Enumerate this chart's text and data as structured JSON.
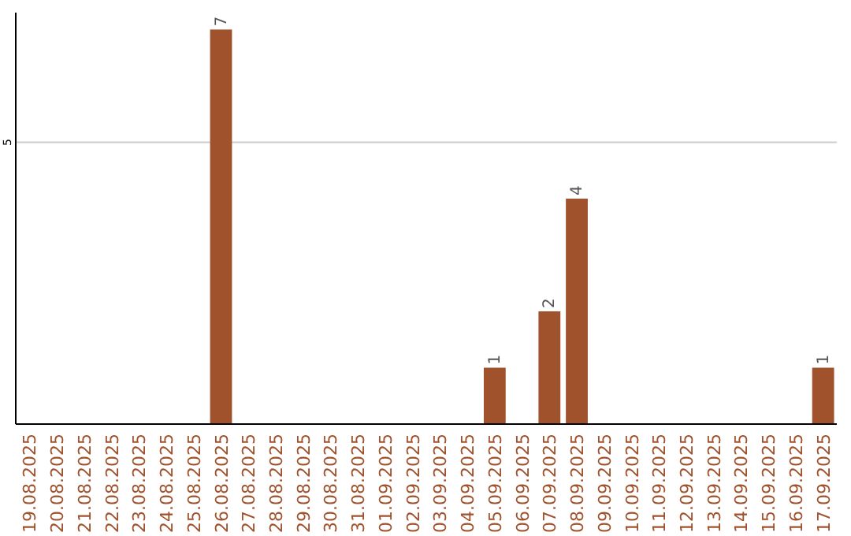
{
  "chart_data": {
    "type": "bar",
    "categories": [
      "19.08.2025",
      "20.08.2025",
      "21.08.2025",
      "22.08.2025",
      "23.08.2025",
      "24.08.2025",
      "25.08.2025",
      "26.08.2025",
      "27.08.2025",
      "28.08.2025",
      "29.08.2025",
      "30.08.2025",
      "31.08.2025",
      "01.09.2025",
      "02.09.2025",
      "03.09.2025",
      "04.09.2025",
      "05.09.2025",
      "06.09.2025",
      "07.09.2025",
      "08.09.2025",
      "09.09.2025",
      "10.09.2025",
      "11.09.2025",
      "12.09.2025",
      "13.09.2025",
      "14.09.2025",
      "15.09.2025",
      "16.09.2025",
      "17.09.2025"
    ],
    "values": [
      0,
      0,
      0,
      0,
      0,
      0,
      0,
      7,
      0,
      0,
      0,
      0,
      0,
      0,
      0,
      0,
      0,
      1,
      0,
      2,
      4,
      0,
      0,
      0,
      0,
      0,
      0,
      0,
      0,
      1
    ],
    "value_labels": [
      null,
      null,
      null,
      null,
      null,
      null,
      null,
      "7",
      null,
      null,
      null,
      null,
      null,
      null,
      null,
      null,
      null,
      "1",
      null,
      "2",
      "4",
      null,
      null,
      null,
      null,
      null,
      null,
      null,
      null,
      "1"
    ],
    "color": "#a0522d",
    "ylim": [
      0,
      7.3
    ],
    "yticks": [
      5
    ],
    "grid": "y"
  }
}
